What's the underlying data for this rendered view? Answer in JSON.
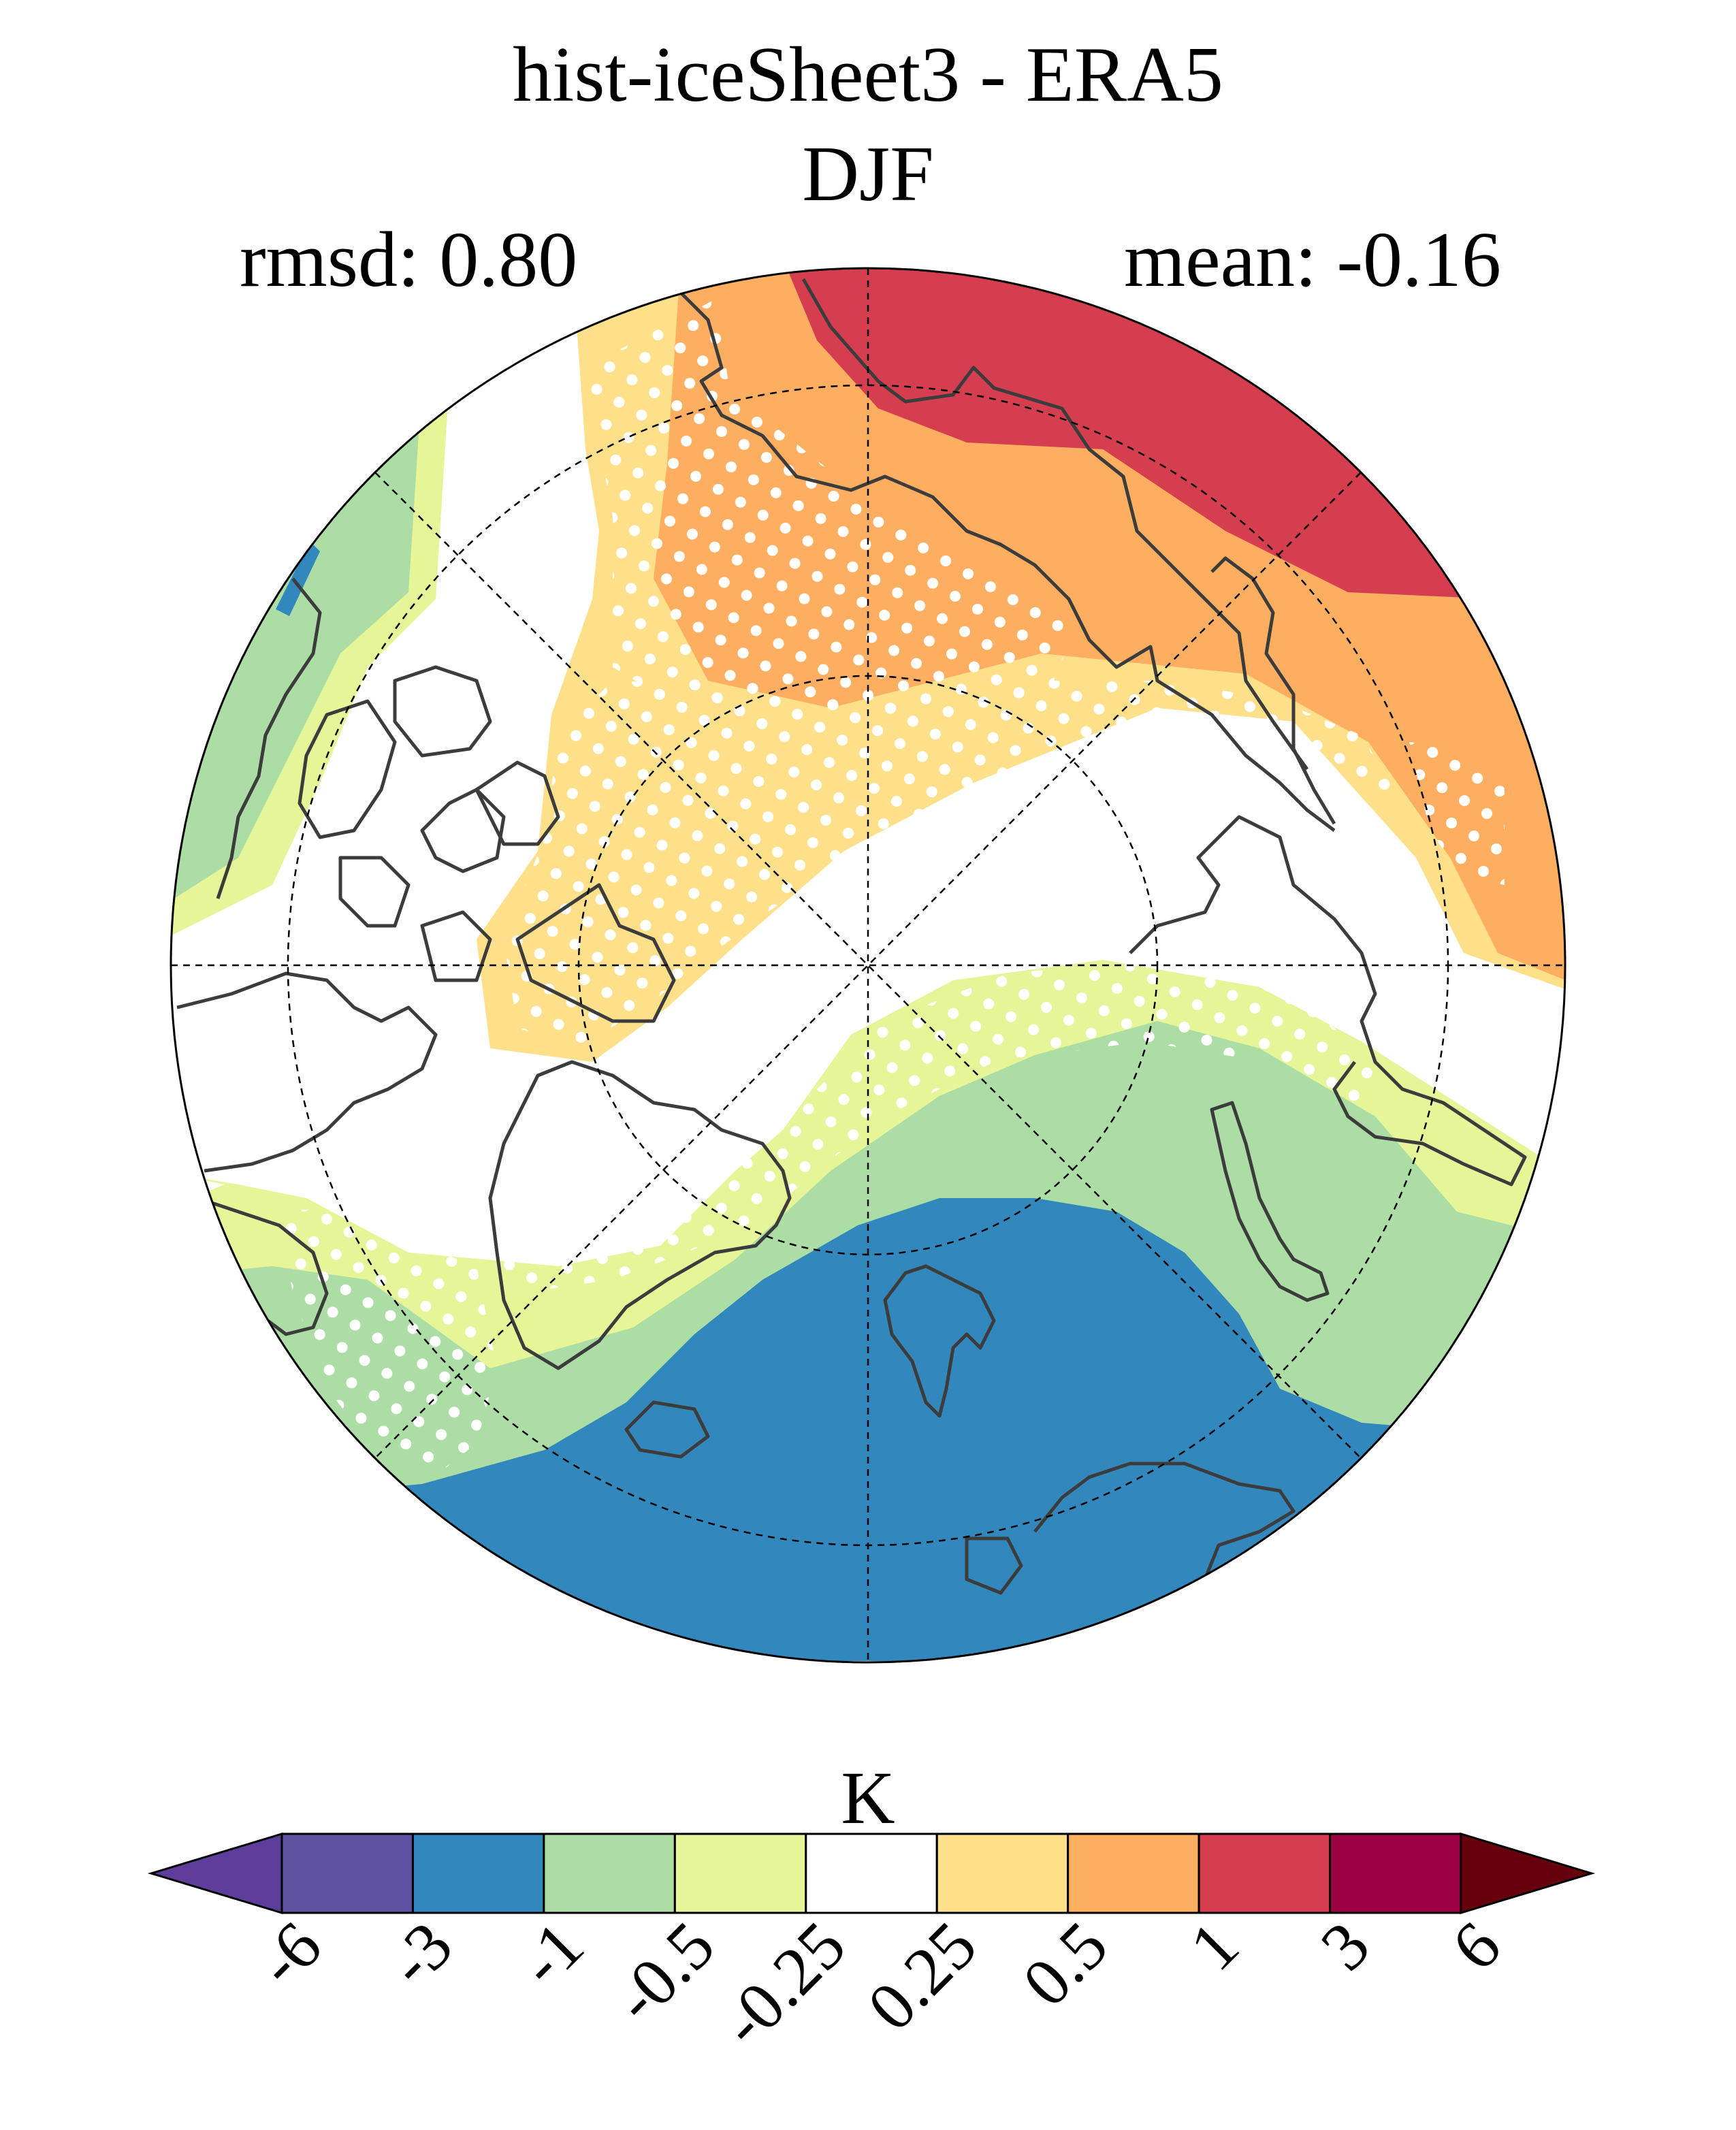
{
  "title": {
    "line1": "hist-iceSheet3 - ERA5",
    "line2": "DJF",
    "rmsd": "rmsd: 0.80",
    "mean": "mean: -0.16"
  },
  "colorbar": {
    "unit": "K",
    "ticks": [
      "-6",
      "-3",
      "-1",
      "-0.5",
      "-0.25",
      "0.25",
      "0.5",
      "1",
      "3",
      "6"
    ],
    "colors": [
      "#5e3c99",
      "#5e50a1",
      "#3288bd",
      "#abdda4",
      "#e6f598",
      "#ffffff",
      "#fee08b",
      "#fdae61",
      "#d53e4f",
      "#9e0142",
      "#67000d"
    ]
  },
  "map": {
    "projection": "north-polar-stereographic",
    "field_colors": {
      "strong_warm": "#d53e4f",
      "warm": "#fdae61",
      "mild_warm": "#fee08b",
      "neutral": "#ffffff",
      "mild_cool": "#e6f598",
      "cool": "#abdda4",
      "cold": "#3288bd"
    },
    "coastline_color": "#3c3c3c",
    "stipple_color": "#ffffff"
  }
}
